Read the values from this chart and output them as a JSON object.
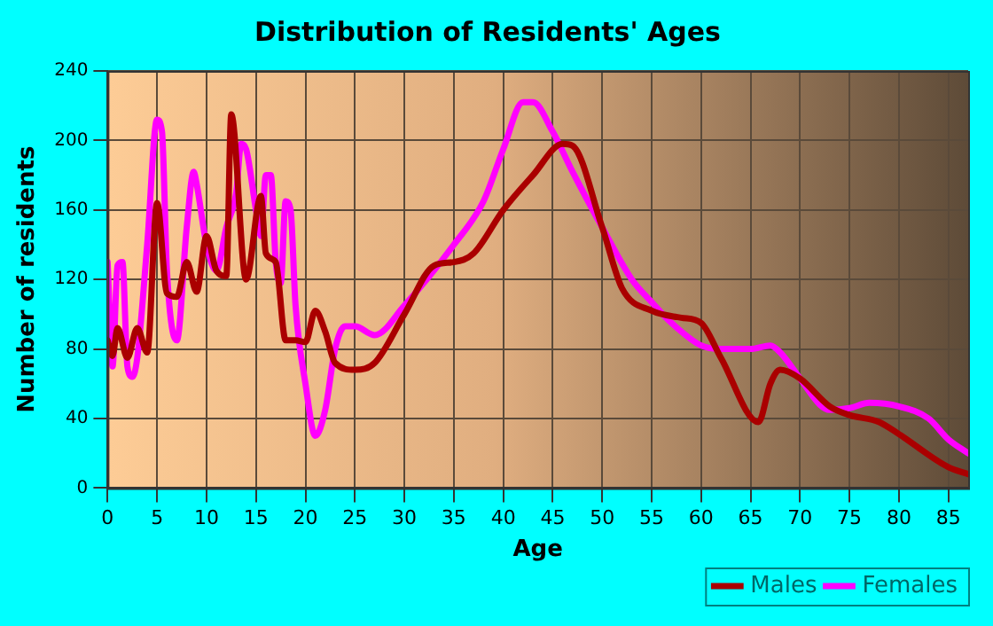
{
  "chart_data": {
    "type": "line",
    "title": "Distribution of Residents' Ages",
    "xlabel": "Age",
    "ylabel": "Number of residents",
    "xlim": [
      0,
      87
    ],
    "xticks": [
      0,
      5,
      10,
      15,
      20,
      25,
      30,
      35,
      40,
      45,
      50,
      55,
      60,
      65,
      70,
      75,
      80,
      85
    ],
    "ylim": [
      0,
      240
    ],
    "yticks": [
      0,
      40,
      80,
      120,
      160,
      200,
      240
    ],
    "grid": true,
    "legend": "bottom right",
    "marker": "none",
    "line_style": "solid",
    "series": [
      {
        "name": "Males",
        "color": "#aa0000",
        "x": [
          0,
          0.5,
          1,
          2,
          3,
          4,
          5,
          6,
          7,
          8,
          9,
          10,
          11,
          12,
          12.5,
          14,
          15.5,
          16,
          17,
          18,
          19,
          20,
          21,
          22,
          23,
          25,
          27,
          30,
          33,
          35,
          37,
          40,
          43,
          46,
          47,
          50,
          52,
          55,
          58,
          60,
          62,
          65.8,
          67,
          68,
          70,
          73,
          75,
          78,
          80,
          85,
          87
        ],
        "values": [
          85,
          76,
          92,
          75,
          92,
          78,
          164,
          112,
          110,
          130,
          113,
          145,
          125,
          122,
          215,
          120,
          168,
          135,
          130,
          85,
          85,
          84,
          102,
          90,
          72,
          68,
          72,
          100,
          128,
          130,
          135,
          160,
          180,
          198,
          197,
          150,
          115,
          102,
          98,
          95,
          75,
          38,
          60,
          68,
          63,
          47,
          42,
          38,
          31,
          12,
          8
        ]
      },
      {
        "name": "Females",
        "color": "#ff00ff",
        "x": [
          0,
          0.5,
          1,
          1.5,
          2,
          2.5,
          3,
          4,
          5,
          5.5,
          6,
          7,
          8,
          8.7,
          9,
          10,
          11,
          12,
          13,
          13.5,
          14,
          15,
          15.5,
          16,
          16.5,
          17,
          17.5,
          18,
          18.5,
          19,
          20,
          21,
          22,
          23,
          24,
          25,
          27,
          30,
          35,
          38,
          40,
          42,
          43,
          45,
          47,
          50,
          53,
          55,
          57,
          60,
          62,
          65,
          67,
          68,
          70,
          72,
          73,
          75,
          77,
          80,
          83,
          85,
          87
        ],
        "values": [
          130,
          70,
          128,
          130,
          70,
          64,
          75,
          140,
          212,
          205,
          125,
          85,
          150,
          182,
          175,
          140,
          125,
          150,
          170,
          198,
          195,
          160,
          145,
          180,
          180,
          130,
          118,
          165,
          160,
          105,
          60,
          30,
          45,
          80,
          93,
          93,
          88,
          105,
          140,
          165,
          195,
          222,
          222,
          205,
          182,
          150,
          120,
          107,
          95,
          82,
          80,
          80,
          82,
          78,
          63,
          48,
          45,
          46,
          49,
          47,
          40,
          28,
          20
        ]
      }
    ]
  }
}
